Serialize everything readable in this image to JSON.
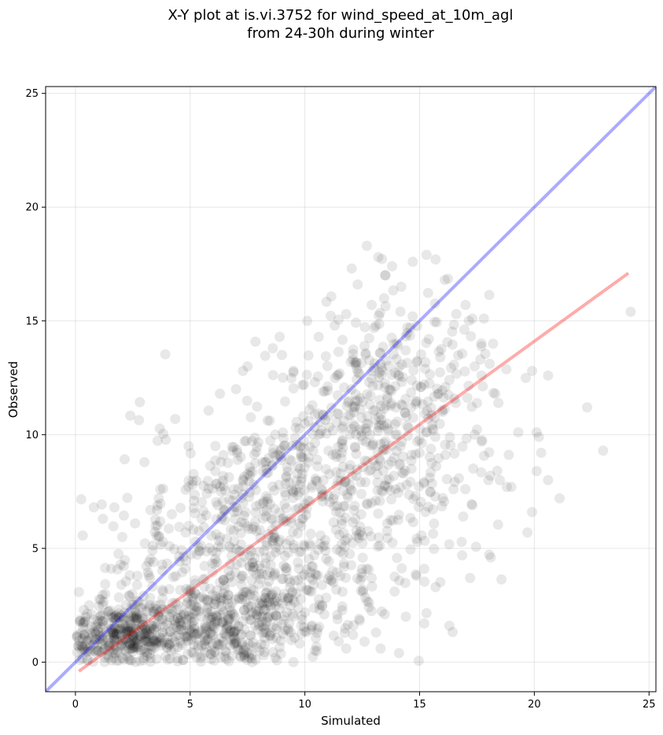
{
  "chart_data": {
    "type": "scatter",
    "title_lines": [
      "X-Y plot at is.vi.3752 for wind_speed_at_10m_agl",
      "from 24-30h during winter"
    ],
    "xlabel": "Simulated",
    "ylabel": "Observed",
    "xlim": [
      -1.3,
      25.3
    ],
    "ylim": [
      -1.3,
      25.3
    ],
    "x_ticks": [
      0,
      5,
      10,
      15,
      20,
      25
    ],
    "y_ticks": [
      0,
      5,
      10,
      15,
      20,
      25
    ],
    "grid": true,
    "legend": "none",
    "point_color": "#000000",
    "point_opacity": 0.09,
    "approx_point_count": 1900,
    "identity_line": {
      "x": [
        -1.3,
        25.3
      ],
      "y": [
        -1.3,
        25.3
      ],
      "color": "#0000ff",
      "opacity": 0.33
    },
    "fit_line": {
      "x": [
        0.15,
        24.1
      ],
      "y": [
        -0.4,
        17.1
      ],
      "color": "#ff0000",
      "opacity": 0.33
    },
    "points": [
      {
        "x": 0.8,
        "y": 6.8
      },
      {
        "x": 1.2,
        "y": 6.3
      },
      {
        "x": 1.7,
        "y": 6.8
      },
      {
        "x": 2.6,
        "y": 6.1
      },
      {
        "x": 3.7,
        "y": 7.6
      },
      {
        "x": 4.2,
        "y": 6.5
      },
      {
        "x": 5.1,
        "y": 7.8
      },
      {
        "x": 6.1,
        "y": 9.5
      },
      {
        "x": 6.3,
        "y": 11.8
      },
      {
        "x": 7.0,
        "y": 12.0
      },
      {
        "x": 7.3,
        "y": 12.8
      },
      {
        "x": 7.5,
        "y": 13.0
      },
      {
        "x": 8.6,
        "y": 13.8
      },
      {
        "x": 8.9,
        "y": 14.3
      },
      {
        "x": 9.0,
        "y": 13.5
      },
      {
        "x": 9.5,
        "y": 12.8
      },
      {
        "x": 10.1,
        "y": 15.0
      },
      {
        "x": 10.6,
        "y": 14.3
      },
      {
        "x": 11.3,
        "y": 14.8
      },
      {
        "x": 11.8,
        "y": 15.3
      },
      {
        "x": 12.3,
        "y": 16.6
      },
      {
        "x": 12.7,
        "y": 18.3
      },
      {
        "x": 13.2,
        "y": 17.8
      },
      {
        "x": 13.5,
        "y": 17.0
      },
      {
        "x": 13.8,
        "y": 17.4
      },
      {
        "x": 14.2,
        "y": 16.5
      },
      {
        "x": 14.7,
        "y": 17.6
      },
      {
        "x": 15.3,
        "y": 17.9
      },
      {
        "x": 15.7,
        "y": 17.7
      },
      {
        "x": 16.1,
        "y": 16.8
      },
      {
        "x": 16.6,
        "y": 15.3
      },
      {
        "x": 17.0,
        "y": 15.7
      },
      {
        "x": 17.3,
        "y": 15.1
      },
      {
        "x": 17.8,
        "y": 15.1
      },
      {
        "x": 18.2,
        "y": 14.0
      },
      {
        "x": 18.3,
        "y": 11.8
      },
      {
        "x": 17.4,
        "y": 13.0
      },
      {
        "x": 17.7,
        "y": 12.6
      },
      {
        "x": 17.4,
        "y": 10.0
      },
      {
        "x": 17.7,
        "y": 9.7
      },
      {
        "x": 18.0,
        "y": 8.0
      },
      {
        "x": 18.5,
        "y": 8.0
      },
      {
        "x": 18.8,
        "y": 7.7
      },
      {
        "x": 17.3,
        "y": 6.9
      },
      {
        "x": 16.9,
        "y": 6.4
      },
      {
        "x": 17.2,
        "y": 3.7
      },
      {
        "x": 18.1,
        "y": 4.6
      },
      {
        "x": 16.3,
        "y": 1.6
      },
      {
        "x": 15.7,
        "y": 3.3
      },
      {
        "x": 15.2,
        "y": 1.7
      },
      {
        "x": 15.2,
        "y": 4.1
      },
      {
        "x": 14.4,
        "y": 2.0
      },
      {
        "x": 14.1,
        "y": 0.4
      },
      {
        "x": 13.3,
        "y": 0.6
      },
      {
        "x": 12.6,
        "y": 0.9
      },
      {
        "x": 13.1,
        "y": 1.3
      },
      {
        "x": 12.1,
        "y": 1.2
      },
      {
        "x": 11.8,
        "y": 0.6
      },
      {
        "x": 9.5,
        "y": 0.0
      },
      {
        "x": 7.7,
        "y": 0.0
      },
      {
        "x": 19.0,
        "y": 7.7
      },
      {
        "x": 19.3,
        "y": 10.1
      },
      {
        "x": 19.7,
        "y": 5.7
      },
      {
        "x": 19.9,
        "y": 6.6
      },
      {
        "x": 19.9,
        "y": 12.8
      },
      {
        "x": 20.1,
        "y": 10.1
      },
      {
        "x": 20.2,
        "y": 9.9
      },
      {
        "x": 20.1,
        "y": 8.4
      },
      {
        "x": 20.3,
        "y": 9.2
      },
      {
        "x": 20.6,
        "y": 8.0
      },
      {
        "x": 20.6,
        "y": 12.6
      },
      {
        "x": 21.1,
        "y": 7.2
      },
      {
        "x": 22.3,
        "y": 11.2
      },
      {
        "x": 23.0,
        "y": 9.3
      },
      {
        "x": 24.2,
        "y": 15.4
      },
      {
        "x": 9.8,
        "y": 9.5
      },
      {
        "x": 10.6,
        "y": 10.0
      },
      {
        "x": 11.7,
        "y": 10.6
      },
      {
        "x": 12.3,
        "y": 11.5
      },
      {
        "x": 12.8,
        "y": 12.3
      },
      {
        "x": 13.3,
        "y": 13.1
      },
      {
        "x": 14.0,
        "y": 14.0
      },
      {
        "x": 14.6,
        "y": 14.7
      },
      {
        "x": 15.4,
        "y": 14.2
      },
      {
        "x": 15.9,
        "y": 13.4
      },
      {
        "x": 16.3,
        "y": 12.4
      },
      {
        "x": 16.0,
        "y": 11.0
      },
      {
        "x": 15.6,
        "y": 10.2
      },
      {
        "x": 15.0,
        "y": 9.2
      },
      {
        "x": 14.3,
        "y": 8.3
      },
      {
        "x": 13.6,
        "y": 7.7
      },
      {
        "x": 12.9,
        "y": 7.0
      },
      {
        "x": 12.2,
        "y": 6.3
      },
      {
        "x": 11.5,
        "y": 5.6
      },
      {
        "x": 10.9,
        "y": 4.9
      },
      {
        "x": 10.3,
        "y": 4.2
      },
      {
        "x": 9.7,
        "y": 3.6
      },
      {
        "x": 9.1,
        "y": 3.0
      },
      {
        "x": 8.5,
        "y": 2.5
      },
      {
        "x": 7.9,
        "y": 2.1
      },
      {
        "x": 7.3,
        "y": 1.8
      },
      {
        "x": 6.6,
        "y": 1.5
      },
      {
        "x": 5.9,
        "y": 1.3
      },
      {
        "x": 5.2,
        "y": 1.2
      },
      {
        "x": 4.5,
        "y": 1.2
      },
      {
        "x": 3.8,
        "y": 1.3
      },
      {
        "x": 3.1,
        "y": 1.4
      },
      {
        "x": 2.4,
        "y": 1.5
      },
      {
        "x": 1.7,
        "y": 1.6
      },
      {
        "x": 1.0,
        "y": 1.7
      },
      {
        "x": 0.4,
        "y": 1.8
      },
      {
        "x": 0.6,
        "y": 2.5
      },
      {
        "x": 1.3,
        "y": 3.0
      },
      {
        "x": 2.0,
        "y": 3.4
      },
      {
        "x": 2.7,
        "y": 3.8
      },
      {
        "x": 3.4,
        "y": 4.4
      },
      {
        "x": 4.1,
        "y": 5.1
      },
      {
        "x": 4.8,
        "y": 5.7
      },
      {
        "x": 5.5,
        "y": 6.3
      },
      {
        "x": 6.2,
        "y": 6.9
      },
      {
        "x": 6.9,
        "y": 7.6
      },
      {
        "x": 7.6,
        "y": 8.2
      },
      {
        "x": 8.3,
        "y": 8.8
      },
      {
        "x": 9.0,
        "y": 9.4
      },
      {
        "x": 9.6,
        "y": 10.3
      },
      {
        "x": 10.2,
        "y": 11.1
      },
      {
        "x": 10.8,
        "y": 11.9
      },
      {
        "x": 11.4,
        "y": 12.6
      },
      {
        "x": 12.0,
        "y": 13.2
      },
      {
        "x": 12.6,
        "y": 13.9
      }
    ]
  }
}
